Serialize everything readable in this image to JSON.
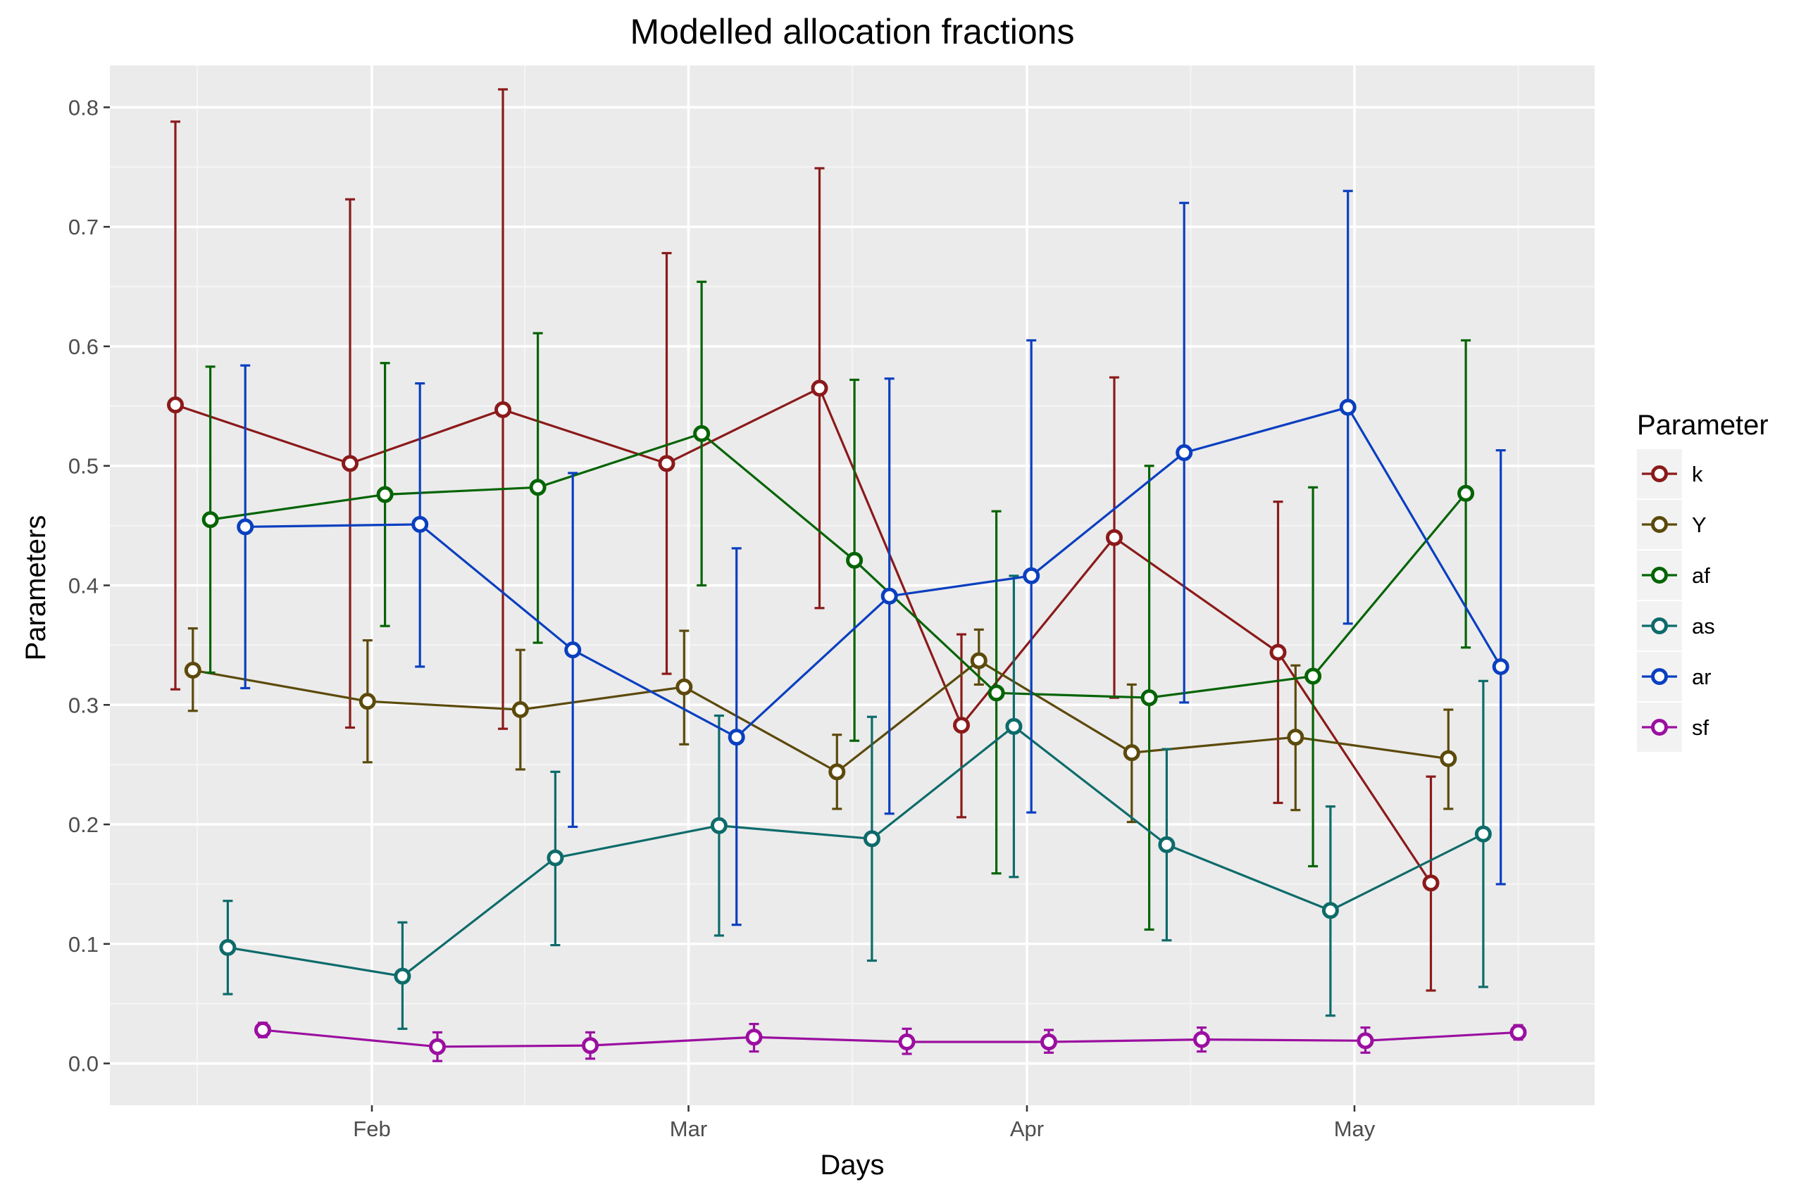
{
  "chart_data": {
    "type": "line",
    "title": "Modelled allocation fractions",
    "xlabel": "Days",
    "ylabel": "Parameters",
    "x_type": "date",
    "xlim": [
      "2016-01-08",
      "2016-05-23"
    ],
    "ylim": [
      -0.035,
      0.835
    ],
    "x_ticks": [
      {
        "value": "2016-02-01",
        "label": "Feb"
      },
      {
        "value": "2016-03-01",
        "label": "Mar"
      },
      {
        "value": "2016-04-01",
        "label": "Apr"
      },
      {
        "value": "2016-05-01",
        "label": "May"
      }
    ],
    "x_minor_ticks": [
      "2016-01-16",
      "2016-02-15",
      "2016-03-16",
      "2016-04-16",
      "2016-05-16"
    ],
    "y_ticks": [
      0.0,
      0.1,
      0.2,
      0.3,
      0.4,
      0.5,
      0.6,
      0.7,
      0.8
    ],
    "y_tick_labels": [
      "0.0",
      "0.1",
      "0.2",
      "0.3",
      "0.4",
      "0.5",
      "0.6",
      "0.7",
      "0.8"
    ],
    "grid": true,
    "error_bars": true,
    "legend": {
      "title": "Parameter",
      "position": "right"
    },
    "series": [
      {
        "name": "k",
        "color": "#8B1A1A",
        "points": [
          {
            "x": "2016-01-18",
            "y": 0.551,
            "lo": 0.313,
            "hi": 0.788
          },
          {
            "x": "2016-02-03",
            "y": 0.502,
            "lo": 0.281,
            "hi": 0.723
          },
          {
            "x": "2016-02-17",
            "y": 0.547,
            "lo": 0.28,
            "hi": 0.815
          },
          {
            "x": "2016-03-03",
            "y": 0.502,
            "lo": 0.326,
            "hi": 0.678
          },
          {
            "x": "2016-03-17",
            "y": 0.565,
            "lo": 0.381,
            "hi": 0.749
          },
          {
            "x": "2016-03-30",
            "y": 0.283,
            "lo": 0.206,
            "hi": 0.359
          },
          {
            "x": "2016-04-13",
            "y": 0.44,
            "lo": 0.306,
            "hi": 0.574
          },
          {
            "x": "2016-04-28",
            "y": 0.344,
            "lo": 0.218,
            "hi": 0.47
          },
          {
            "x": "2016-05-12",
            "y": 0.151,
            "lo": 0.061,
            "hi": 0.24
          }
        ]
      },
      {
        "name": "Y",
        "color": "#5C4A0C",
        "points": [
          {
            "x": "2016-01-18",
            "y": 0.329,
            "lo": 0.295,
            "hi": 0.364
          },
          {
            "x": "2016-02-03",
            "y": 0.303,
            "lo": 0.252,
            "hi": 0.354
          },
          {
            "x": "2016-02-17",
            "y": 0.296,
            "lo": 0.246,
            "hi": 0.346
          },
          {
            "x": "2016-03-03",
            "y": 0.315,
            "lo": 0.267,
            "hi": 0.362
          },
          {
            "x": "2016-03-17",
            "y": 0.244,
            "lo": 0.213,
            "hi": 0.275
          },
          {
            "x": "2016-03-30",
            "y": 0.337,
            "lo": 0.317,
            "hi": 0.363
          },
          {
            "x": "2016-04-13",
            "y": 0.26,
            "lo": 0.202,
            "hi": 0.317
          },
          {
            "x": "2016-04-28",
            "y": 0.273,
            "lo": 0.212,
            "hi": 0.333
          },
          {
            "x": "2016-05-12",
            "y": 0.255,
            "lo": 0.213,
            "hi": 0.296
          }
        ]
      },
      {
        "name": "af",
        "color": "#056405",
        "points": [
          {
            "x": "2016-01-18",
            "y": 0.455,
            "lo": 0.327,
            "hi": 0.583
          },
          {
            "x": "2016-02-03",
            "y": 0.476,
            "lo": 0.366,
            "hi": 0.586
          },
          {
            "x": "2016-02-17",
            "y": 0.482,
            "lo": 0.352,
            "hi": 0.611
          },
          {
            "x": "2016-03-03",
            "y": 0.527,
            "lo": 0.4,
            "hi": 0.654
          },
          {
            "x": "2016-03-17",
            "y": 0.421,
            "lo": 0.27,
            "hi": 0.572
          },
          {
            "x": "2016-03-30",
            "y": 0.31,
            "lo": 0.159,
            "hi": 0.462
          },
          {
            "x": "2016-04-13",
            "y": 0.306,
            "lo": 0.112,
            "hi": 0.5
          },
          {
            "x": "2016-04-28",
            "y": 0.324,
            "lo": 0.165,
            "hi": 0.482
          },
          {
            "x": "2016-05-12",
            "y": 0.477,
            "lo": 0.348,
            "hi": 0.605
          }
        ]
      },
      {
        "name": "as",
        "color": "#0E6B6B",
        "points": [
          {
            "x": "2016-01-18",
            "y": 0.097,
            "lo": 0.058,
            "hi": 0.136
          },
          {
            "x": "2016-02-03",
            "y": 0.073,
            "lo": 0.029,
            "hi": 0.118
          },
          {
            "x": "2016-02-17",
            "y": 0.172,
            "lo": 0.099,
            "hi": 0.244
          },
          {
            "x": "2016-03-03",
            "y": 0.199,
            "lo": 0.107,
            "hi": 0.291
          },
          {
            "x": "2016-03-17",
            "y": 0.188,
            "lo": 0.086,
            "hi": 0.29
          },
          {
            "x": "2016-03-30",
            "y": 0.282,
            "lo": 0.156,
            "hi": 0.408
          },
          {
            "x": "2016-04-13",
            "y": 0.183,
            "lo": 0.103,
            "hi": 0.263
          },
          {
            "x": "2016-04-28",
            "y": 0.128,
            "lo": 0.04,
            "hi": 0.215
          },
          {
            "x": "2016-05-12",
            "y": 0.192,
            "lo": 0.064,
            "hi": 0.32
          }
        ]
      },
      {
        "name": "ar",
        "color": "#0A3FC0",
        "points": [
          {
            "x": "2016-01-18",
            "y": 0.449,
            "lo": 0.314,
            "hi": 0.584
          },
          {
            "x": "2016-02-03",
            "y": 0.451,
            "lo": 0.332,
            "hi": 0.569
          },
          {
            "x": "2016-02-17",
            "y": 0.346,
            "lo": 0.198,
            "hi": 0.494
          },
          {
            "x": "2016-03-03",
            "y": 0.273,
            "lo": 0.116,
            "hi": 0.431
          },
          {
            "x": "2016-03-17",
            "y": 0.391,
            "lo": 0.209,
            "hi": 0.573
          },
          {
            "x": "2016-03-30",
            "y": 0.408,
            "lo": 0.21,
            "hi": 0.605
          },
          {
            "x": "2016-04-13",
            "y": 0.511,
            "lo": 0.302,
            "hi": 0.72
          },
          {
            "x": "2016-04-28",
            "y": 0.549,
            "lo": 0.368,
            "hi": 0.73
          },
          {
            "x": "2016-05-12",
            "y": 0.332,
            "lo": 0.15,
            "hi": 0.513
          }
        ]
      },
      {
        "name": "sf",
        "color": "#9B0FA0",
        "points": [
          {
            "x": "2016-01-18",
            "y": 0.028,
            "lo": 0.022,
            "hi": 0.034
          },
          {
            "x": "2016-02-03",
            "y": 0.014,
            "lo": 0.002,
            "hi": 0.026
          },
          {
            "x": "2016-02-17",
            "y": 0.015,
            "lo": 0.004,
            "hi": 0.026
          },
          {
            "x": "2016-03-03",
            "y": 0.022,
            "lo": 0.01,
            "hi": 0.033
          },
          {
            "x": "2016-03-17",
            "y": 0.018,
            "lo": 0.008,
            "hi": 0.029
          },
          {
            "x": "2016-03-30",
            "y": 0.018,
            "lo": 0.009,
            "hi": 0.028
          },
          {
            "x": "2016-04-13",
            "y": 0.02,
            "lo": 0.01,
            "hi": 0.03
          },
          {
            "x": "2016-04-28",
            "y": 0.019,
            "lo": 0.009,
            "hi": 0.03
          },
          {
            "x": "2016-05-12",
            "y": 0.026,
            "lo": 0.02,
            "hi": 0.032
          }
        ]
      }
    ]
  }
}
